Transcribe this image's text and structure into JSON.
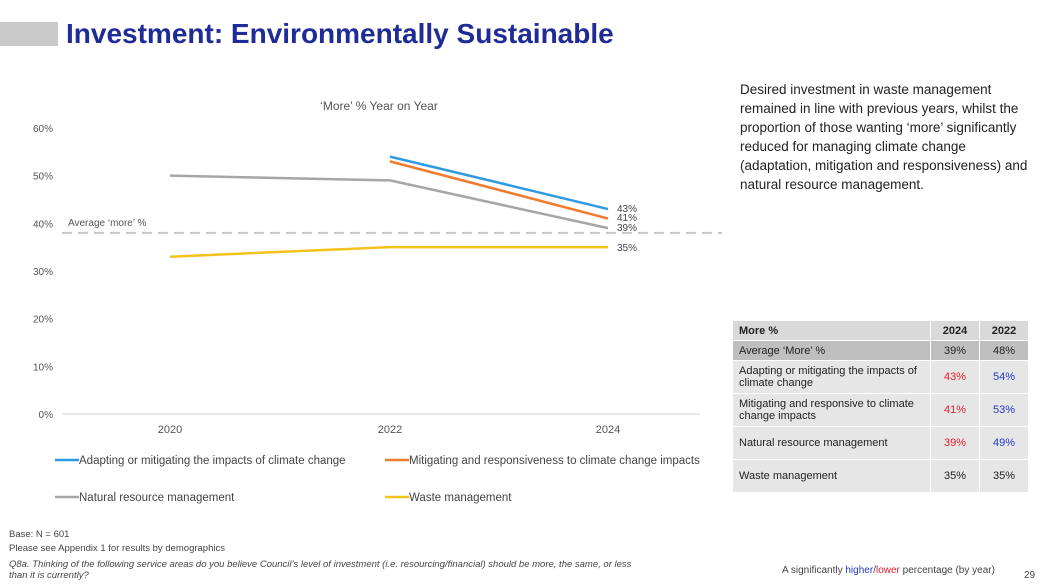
{
  "page": {
    "title": "Investment: Environmentally Sustainable",
    "description": "Desired investment in waste management remained in line with previous years, whilst the proportion of those wanting ‘more’ significantly reduced for managing climate change (adaptation, mitigation and responsiveness) and natural resource management.",
    "base": "Base: N = 601",
    "appendix_note": "Please see Appendix 1 for results by demographics",
    "question": "Q8a. Thinking of the following service areas do you believe Council’s level of investment (i.e. resourcing/financial) should be more, the same, or less than it is currently?",
    "significance_prefix": "A significantly",
    "significance_higher": "higher",
    "significance_sep": "/",
    "significance_lower": "lower",
    "significance_suffix": "percentage (by year)",
    "page_number": "29"
  },
  "chart_data": {
    "type": "line",
    "title": "‘More’ % Year on Year",
    "x": [
      "2020",
      "2022",
      "2024"
    ],
    "yticks": [
      "0%",
      "10%",
      "20%",
      "30%",
      "40%",
      "50%",
      "60%"
    ],
    "ylim": [
      0,
      60
    ],
    "reference_line": {
      "label": "Average ‘more’ %",
      "value": 38
    },
    "series": [
      {
        "name": "Adapting or mitigating the impacts of climate change",
        "color": "#2e9be0",
        "values": [
          null,
          54,
          43
        ],
        "end_label": "43%"
      },
      {
        "name": "Mitigating and responsiveness to climate change impacts",
        "color": "#f07a2e",
        "values": [
          null,
          53,
          41
        ],
        "end_label": "41%"
      },
      {
        "name": "Natural resource management",
        "color": "#a6a6a6",
        "values": [
          50,
          49,
          39
        ],
        "end_label": "39%"
      },
      {
        "name": "Waste management",
        "color": "#f5c21b",
        "values": [
          33,
          35,
          35
        ],
        "end_label": "35%"
      }
    ],
    "legend": "bottom",
    "grid": false
  },
  "table": {
    "header": [
      "More %",
      "2024",
      "2022"
    ],
    "rows": [
      {
        "label": "Average ‘More’ %",
        "v2024": "39%",
        "v2022": "48%"
      },
      {
        "label": "Adapting or mitigating the impacts of climate change",
        "v2024": "43%",
        "v2022": "54%"
      },
      {
        "label": "Mitigating and responsive to climate change impacts",
        "v2024": "41%",
        "v2022": "53%"
      },
      {
        "label": "Natural resource management",
        "v2024": "39%",
        "v2022": "49%"
      },
      {
        "label": "Waste management",
        "v2024": "35%",
        "v2022": "35%"
      }
    ]
  },
  "colors": {
    "title": "#1f2b96",
    "higher": "#2338c9",
    "lower": "#e0202e"
  }
}
